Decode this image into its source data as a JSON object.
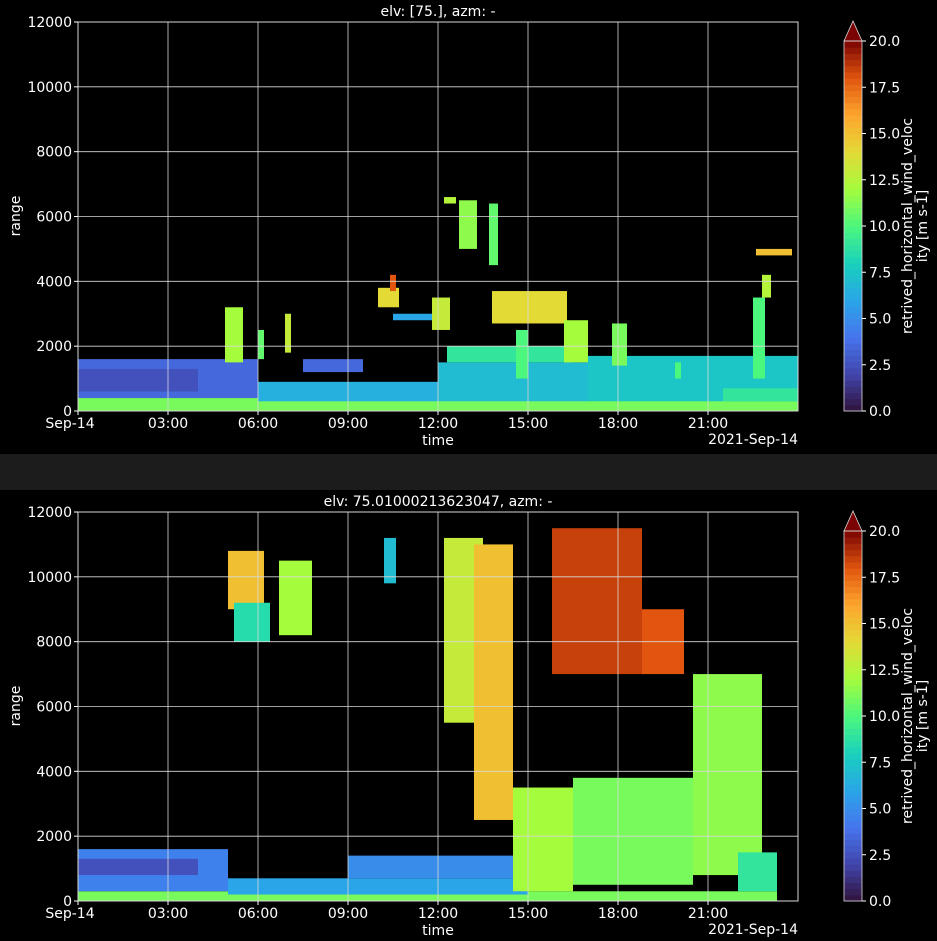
{
  "figure": {
    "background": "#000000",
    "separator_color": "#1c1c1c",
    "colormap": "turbo"
  },
  "chart_data": [
    {
      "type": "heatmap",
      "title": "elv: [75.], azm: -",
      "xlabel": "time",
      "ylabel": "range",
      "x_ticks": [
        "Sep-14",
        "03:00",
        "06:00",
        "09:00",
        "12:00",
        "15:00",
        "18:00",
        "21:00"
      ],
      "x_offset_label": "2021-Sep-14",
      "x_range_hours": [
        0,
        24
      ],
      "ylim": [
        0,
        12000
      ],
      "y_ticks": [
        "0",
        "2000",
        "4000",
        "6000",
        "8000",
        "10000",
        "12000"
      ],
      "grid": true,
      "colorbar": {
        "label": "retrived_horizontal_wind_veloc\nity [m s-1]",
        "range": [
          0,
          20
        ],
        "ticks": [
          "0.0",
          "2.5",
          "5.0",
          "7.5",
          "10.0",
          "12.5",
          "15.0",
          "17.5",
          "20.0"
        ],
        "extend": "max"
      },
      "regions": [
        {
          "t": [
            0,
            24
          ],
          "r": [
            0,
            400
          ],
          "v": 11
        },
        {
          "t": [
            0,
            6
          ],
          "r": [
            400,
            1600
          ],
          "v": 3.5
        },
        {
          "t": [
            0,
            4
          ],
          "r": [
            600,
            1300
          ],
          "v": 2.5
        },
        {
          "t": [
            6,
            12
          ],
          "r": [
            300,
            900
          ],
          "v": 6.5
        },
        {
          "t": [
            7.5,
            9.5
          ],
          "r": [
            1200,
            1600
          ],
          "v": 3.5
        },
        {
          "t": [
            12,
            17
          ],
          "r": [
            300,
            1500
          ],
          "v": 7
        },
        {
          "t": [
            12.3,
            16.5
          ],
          "r": [
            1500,
            2000
          ],
          "v": 9
        },
        {
          "t": [
            17,
            24
          ],
          "r": [
            300,
            1700
          ],
          "v": 7.5
        },
        {
          "t": [
            21.5,
            24
          ],
          "r": [
            300,
            700
          ],
          "v": 9
        },
        {
          "t": [
            4.9,
            5.5
          ],
          "r": [
            1500,
            3200
          ],
          "v": 12
        },
        {
          "t": [
            6.0,
            6.2
          ],
          "r": [
            1600,
            2500
          ],
          "v": 10.5
        },
        {
          "t": [
            6.9,
            7.1
          ],
          "r": [
            1800,
            3000
          ],
          "v": 13
        },
        {
          "t": [
            10.0,
            10.7
          ],
          "r": [
            3200,
            3800
          ],
          "v": 14
        },
        {
          "t": [
            10.4,
            10.6
          ],
          "r": [
            3700,
            4200
          ],
          "v": 18
        },
        {
          "t": [
            10.5,
            12.1
          ],
          "r": [
            2800,
            3000
          ],
          "v": 6
        },
        {
          "t": [
            11.8,
            12.4
          ],
          "r": [
            2500,
            3500
          ],
          "v": 13
        },
        {
          "t": [
            12.2,
            12.6
          ],
          "r": [
            6400,
            6600
          ],
          "v": 12.5
        },
        {
          "t": [
            12.7,
            13.3
          ],
          "r": [
            5000,
            6500
          ],
          "v": 11.5
        },
        {
          "t": [
            13.7,
            14.0
          ],
          "r": [
            4500,
            6400
          ],
          "v": 10.5
        },
        {
          "t": [
            13.8,
            16.3
          ],
          "r": [
            2700,
            3700
          ],
          "v": 14
        },
        {
          "t": [
            14.6,
            15.0
          ],
          "r": [
            1000,
            2500
          ],
          "v": 10
        },
        {
          "t": [
            16.2,
            17.0
          ],
          "r": [
            1500,
            2800
          ],
          "v": 12
        },
        {
          "t": [
            17.8,
            18.3
          ],
          "r": [
            1400,
            2700
          ],
          "v": 11
        },
        {
          "t": [
            19.9,
            20.1
          ],
          "r": [
            1000,
            1500
          ],
          "v": 10
        },
        {
          "t": [
            22.5,
            22.9
          ],
          "r": [
            1000,
            3500
          ],
          "v": 10
        },
        {
          "t": [
            22.8,
            23.1
          ],
          "r": [
            3500,
            4200
          ],
          "v": 12.5
        },
        {
          "t": [
            22.6,
            23.8
          ],
          "r": [
            4800,
            5000
          ],
          "v": 15
        }
      ]
    },
    {
      "type": "heatmap",
      "title": "elv: 75.01000213623047, azm: -",
      "xlabel": "time",
      "ylabel": "range",
      "x_ticks": [
        "Sep-14",
        "03:00",
        "06:00",
        "09:00",
        "12:00",
        "15:00",
        "18:00",
        "21:00"
      ],
      "x_offset_label": "2021-Sep-14",
      "x_range_hours": [
        0,
        24
      ],
      "ylim": [
        0,
        12000
      ],
      "y_ticks": [
        "0",
        "2000",
        "4000",
        "6000",
        "8000",
        "10000",
        "12000"
      ],
      "grid": true,
      "colorbar": {
        "label": "retrived_horizontal_wind_veloc\nity [m s-1]",
        "range": [
          0,
          20
        ],
        "ticks": [
          "0.0",
          "2.5",
          "5.0",
          "7.5",
          "10.0",
          "12.5",
          "15.0",
          "17.5",
          "20.0"
        ],
        "extend": "max"
      },
      "regions": [
        {
          "t": [
            0,
            23.3
          ],
          "r": [
            0,
            300
          ],
          "v": 11
        },
        {
          "t": [
            0,
            5
          ],
          "r": [
            300,
            1600
          ],
          "v": 4.5
        },
        {
          "t": [
            0,
            4
          ],
          "r": [
            800,
            1300
          ],
          "v": 2.5
        },
        {
          "t": [
            5,
            15
          ],
          "r": [
            200,
            700
          ],
          "v": 6
        },
        {
          "t": [
            9,
            15
          ],
          "r": [
            700,
            1400
          ],
          "v": 5
        },
        {
          "t": [
            5.0,
            6.2
          ],
          "r": [
            9000,
            10800
          ],
          "v": 15
        },
        {
          "t": [
            5.2,
            6.4
          ],
          "r": [
            8000,
            9200
          ],
          "v": 8.5
        },
        {
          "t": [
            6.7,
            7.8
          ],
          "r": [
            8200,
            10500
          ],
          "v": 12
        },
        {
          "t": [
            10.2,
            10.6
          ],
          "r": [
            9800,
            11200
          ],
          "v": 7
        },
        {
          "t": [
            12.2,
            13.5
          ],
          "r": [
            5500,
            11200
          ],
          "v": 13
        },
        {
          "t": [
            13.2,
            14.5
          ],
          "r": [
            2500,
            11000
          ],
          "v": 15
        },
        {
          "t": [
            14.5,
            16.5
          ],
          "r": [
            300,
            3500
          ],
          "v": 12
        },
        {
          "t": [
            16.5,
            20.5
          ],
          "r": [
            500,
            3800
          ],
          "v": 11
        },
        {
          "t": [
            15.8,
            18.8
          ],
          "r": [
            7000,
            11500
          ],
          "v": 18.5
        },
        {
          "t": [
            18.8,
            20.2
          ],
          "r": [
            7000,
            9000
          ],
          "v": 18
        },
        {
          "t": [
            20.5,
            22.8
          ],
          "r": [
            800,
            7000
          ],
          "v": 11.5
        },
        {
          "t": [
            22.0,
            23.3
          ],
          "r": [
            300,
            1500
          ],
          "v": 9
        }
      ]
    }
  ]
}
